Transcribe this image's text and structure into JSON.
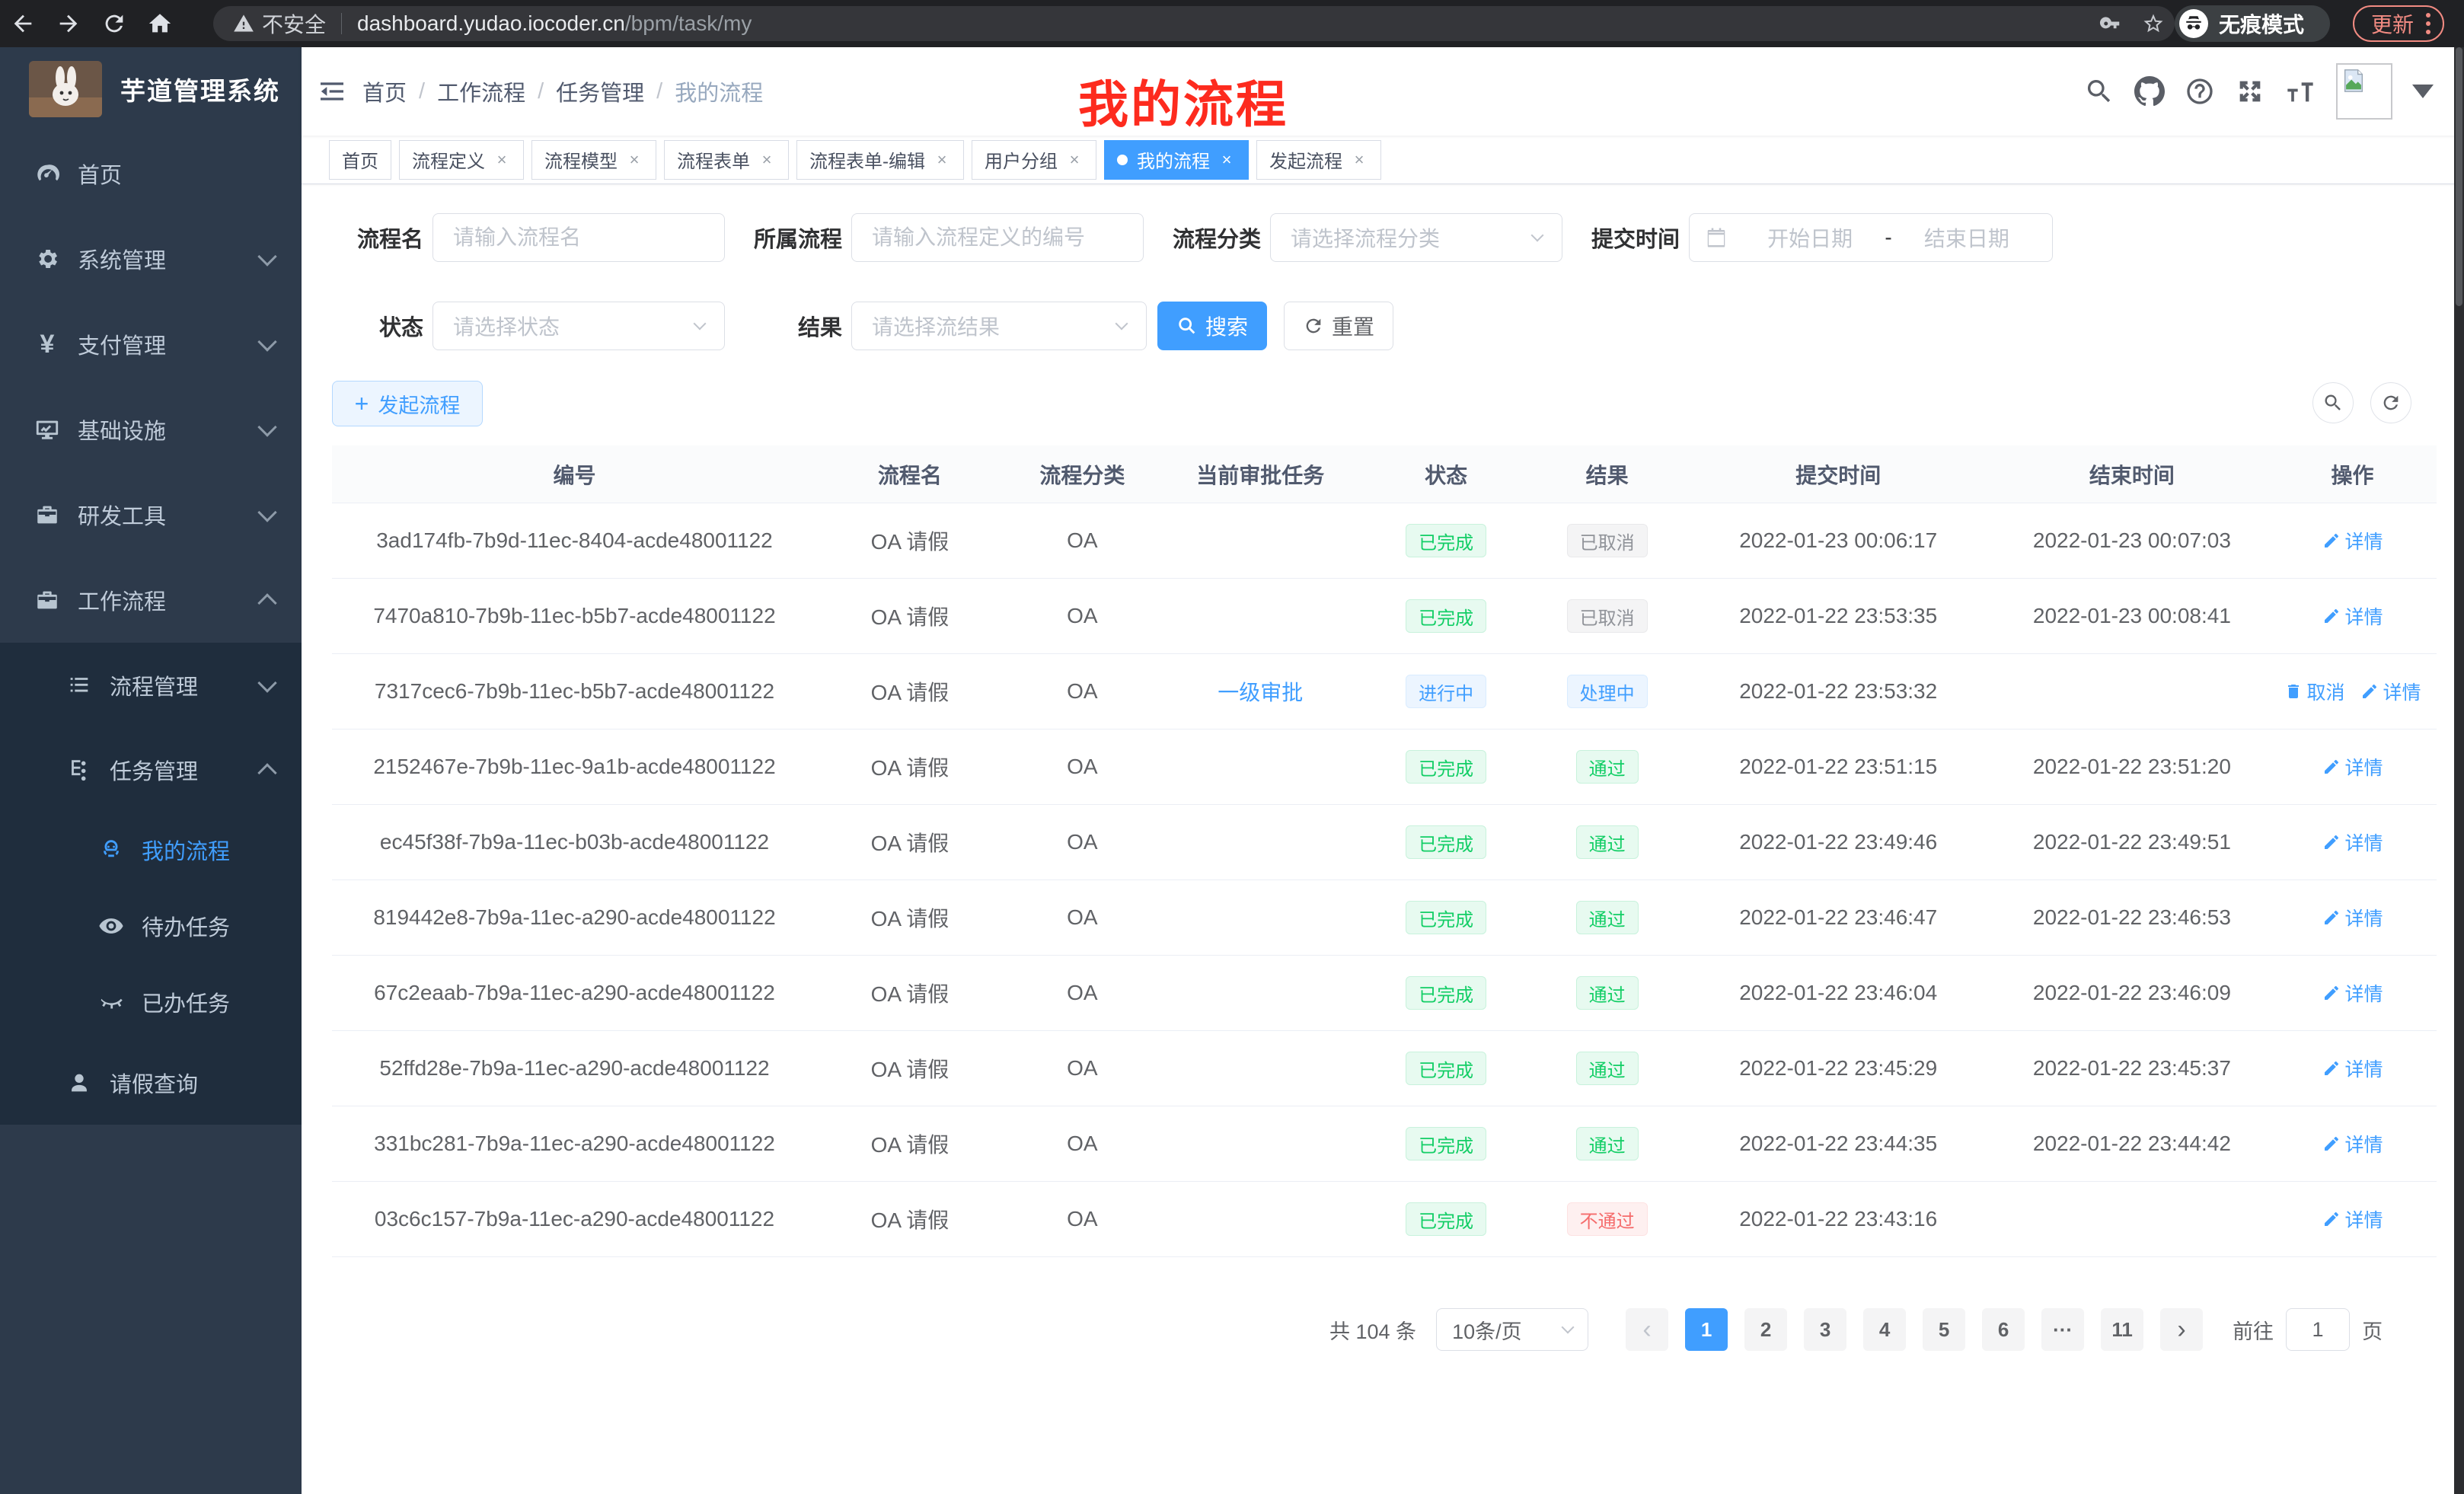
{
  "browser": {
    "security_label": "不安全",
    "url_host": "dashboard.yudao.iocoder.cn",
    "url_path": "/bpm/task/my",
    "incognito_label": "无痕模式",
    "update_label": "更新"
  },
  "sidebar": {
    "title": "芋道管理系统",
    "items": [
      {
        "label": "首页",
        "icon": "dashboard-icon"
      },
      {
        "label": "系统管理",
        "icon": "gear-icon",
        "chevron": "down"
      },
      {
        "label": "支付管理",
        "icon": "yen-icon",
        "chevron": "down"
      },
      {
        "label": "基础设施",
        "icon": "monitor-icon",
        "chevron": "down"
      },
      {
        "label": "研发工具",
        "icon": "toolbox-icon",
        "chevron": "down"
      },
      {
        "label": "工作流程",
        "icon": "briefcase-icon",
        "chevron": "up"
      },
      {
        "label": "流程管理",
        "icon": "list-icon",
        "chevron": "down"
      },
      {
        "label": "任务管理",
        "icon": "tree-icon",
        "chevron": "up"
      },
      {
        "label": "我的流程",
        "icon": "robot-icon",
        "active": true
      },
      {
        "label": "待办任务",
        "icon": "eye-icon"
      },
      {
        "label": "已办任务",
        "icon": "eye-closed-icon"
      },
      {
        "label": "请假查询",
        "icon": "user-icon"
      }
    ]
  },
  "header": {
    "breadcrumb": [
      "首页",
      "工作流程",
      "任务管理",
      "我的流程"
    ],
    "annotation": "我的流程"
  },
  "tabs": [
    {
      "label": "首页"
    },
    {
      "label": "流程定义"
    },
    {
      "label": "流程模型"
    },
    {
      "label": "流程表单"
    },
    {
      "label": "流程表单-编辑"
    },
    {
      "label": "用户分组"
    },
    {
      "label": "我的流程",
      "active": true
    },
    {
      "label": "发起流程"
    }
  ],
  "filters": {
    "name_label": "流程名",
    "name_placeholder": "请输入流程名",
    "process_label": "所属流程",
    "process_placeholder": "请输入流程定义的编号",
    "category_label": "流程分类",
    "category_placeholder": "请选择流程分类",
    "submit_time_label": "提交时间",
    "date_start_placeholder": "开始日期",
    "date_separator": "-",
    "date_end_placeholder": "结束日期",
    "status_label": "状态",
    "status_placeholder": "请选择状态",
    "result_label": "结果",
    "result_placeholder": "请选择流结果",
    "search_label": "搜索",
    "reset_label": "重置"
  },
  "toolbar": {
    "create_label": "发起流程"
  },
  "table": {
    "columns": [
      "编号",
      "流程名",
      "流程分类",
      "当前审批任务",
      "状态",
      "结果",
      "提交时间",
      "结束时间",
      "操作"
    ],
    "rows": [
      {
        "id": "3ad174fb-7b9d-11ec-8404-acde48001122",
        "name": "OA 请假",
        "category": "OA",
        "task": "",
        "status": "已完成",
        "status_type": "success",
        "result": "已取消",
        "result_type": "info",
        "submit_time": "2022-01-23 00:06:17",
        "end_time": "2022-01-23 00:07:03",
        "actions": [
          {
            "key": "detail",
            "label": "详情"
          }
        ]
      },
      {
        "id": "7470a810-7b9b-11ec-b5b7-acde48001122",
        "name": "OA 请假",
        "category": "OA",
        "task": "",
        "status": "已完成",
        "status_type": "success",
        "result": "已取消",
        "result_type": "info",
        "submit_time": "2022-01-22 23:53:35",
        "end_time": "2022-01-23 00:08:41",
        "actions": [
          {
            "key": "detail",
            "label": "详情"
          }
        ]
      },
      {
        "id": "7317cec6-7b9b-11ec-b5b7-acde48001122",
        "name": "OA 请假",
        "category": "OA",
        "task": "一级审批",
        "status": "进行中",
        "status_type": "primary",
        "result": "处理中",
        "result_type": "primary",
        "submit_time": "2022-01-22 23:53:32",
        "end_time": "",
        "actions": [
          {
            "key": "cancel",
            "label": "取消"
          },
          {
            "key": "detail",
            "label": "详情"
          }
        ]
      },
      {
        "id": "2152467e-7b9b-11ec-9a1b-acde48001122",
        "name": "OA 请假",
        "category": "OA",
        "task": "",
        "status": "已完成",
        "status_type": "success",
        "result": "通过",
        "result_type": "success",
        "submit_time": "2022-01-22 23:51:15",
        "end_time": "2022-01-22 23:51:20",
        "actions": [
          {
            "key": "detail",
            "label": "详情"
          }
        ]
      },
      {
        "id": "ec45f38f-7b9a-11ec-b03b-acde48001122",
        "name": "OA 请假",
        "category": "OA",
        "task": "",
        "status": "已完成",
        "status_type": "success",
        "result": "通过",
        "result_type": "success",
        "submit_time": "2022-01-22 23:49:46",
        "end_time": "2022-01-22 23:49:51",
        "actions": [
          {
            "key": "detail",
            "label": "详情"
          }
        ]
      },
      {
        "id": "819442e8-7b9a-11ec-a290-acde48001122",
        "name": "OA 请假",
        "category": "OA",
        "task": "",
        "status": "已完成",
        "status_type": "success",
        "result": "通过",
        "result_type": "success",
        "submit_time": "2022-01-22 23:46:47",
        "end_time": "2022-01-22 23:46:53",
        "actions": [
          {
            "key": "detail",
            "label": "详情"
          }
        ]
      },
      {
        "id": "67c2eaab-7b9a-11ec-a290-acde48001122",
        "name": "OA 请假",
        "category": "OA",
        "task": "",
        "status": "已完成",
        "status_type": "success",
        "result": "通过",
        "result_type": "success",
        "submit_time": "2022-01-22 23:46:04",
        "end_time": "2022-01-22 23:46:09",
        "actions": [
          {
            "key": "detail",
            "label": "详情"
          }
        ]
      },
      {
        "id": "52ffd28e-7b9a-11ec-a290-acde48001122",
        "name": "OA 请假",
        "category": "OA",
        "task": "",
        "status": "已完成",
        "status_type": "success",
        "result": "通过",
        "result_type": "success",
        "submit_time": "2022-01-22 23:45:29",
        "end_time": "2022-01-22 23:45:37",
        "actions": [
          {
            "key": "detail",
            "label": "详情"
          }
        ]
      },
      {
        "id": "331bc281-7b9a-11ec-a290-acde48001122",
        "name": "OA 请假",
        "category": "OA",
        "task": "",
        "status": "已完成",
        "status_type": "success",
        "result": "通过",
        "result_type": "success",
        "submit_time": "2022-01-22 23:44:35",
        "end_time": "2022-01-22 23:44:42",
        "actions": [
          {
            "key": "detail",
            "label": "详情"
          }
        ]
      },
      {
        "id": "03c6c157-7b9a-11ec-a290-acde48001122",
        "name": "OA 请假",
        "category": "OA",
        "task": "",
        "status": "已完成",
        "status_type": "success",
        "result": "不通过",
        "result_type": "danger",
        "submit_time": "2022-01-22 23:43:16",
        "end_time": "",
        "actions": [
          {
            "key": "detail",
            "label": "详情"
          }
        ]
      }
    ]
  },
  "pagination": {
    "total_label": "共 104 条",
    "page_size_label": "10条/页",
    "pages": [
      "1",
      "2",
      "3",
      "4",
      "5",
      "6",
      "···",
      "11"
    ],
    "active_page": "1",
    "goto_label": "前往",
    "goto_value": "1",
    "goto_suffix": "页"
  },
  "colors": {
    "primary": "#409eff",
    "success": "#13ce66",
    "danger": "#f56c6c",
    "info": "#909399",
    "sidebar_bg": "#2d3a4b",
    "submenu_bg": "#1f2d3d",
    "annotation_red": "#fd2b1e"
  }
}
